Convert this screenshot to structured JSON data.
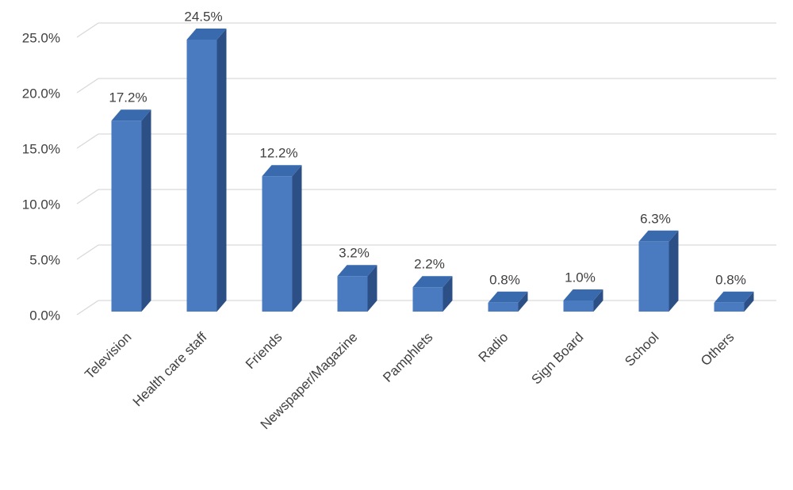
{
  "chart_data": {
    "type": "bar3d",
    "categories": [
      "Television",
      "Health care staff",
      "Friends",
      "Newspaper/Magazine",
      "Pamphlets",
      "Radio",
      "Sign Board",
      "School",
      "Others"
    ],
    "values": [
      17.2,
      24.5,
      12.2,
      3.2,
      2.2,
      0.8,
      1.0,
      6.3,
      0.8
    ],
    "value_labels": [
      "17.2%",
      "24.5%",
      "12.2%",
      "3.2%",
      "2.2%",
      "0.8%",
      "1.0%",
      "6.3%",
      "0.8%"
    ],
    "color": "#4a7bc0",
    "ylim": [
      0,
      25
    ],
    "yticks": [
      {
        "value": 0,
        "label": "0.0%"
      },
      {
        "value": 5,
        "label": "5.0%"
      },
      {
        "value": 10,
        "label": "10.0%"
      },
      {
        "value": 15,
        "label": "15.0%"
      },
      {
        "value": 20,
        "label": "20.0%"
      },
      {
        "value": 25,
        "label": "25.0%"
      }
    ],
    "grid": true
  }
}
